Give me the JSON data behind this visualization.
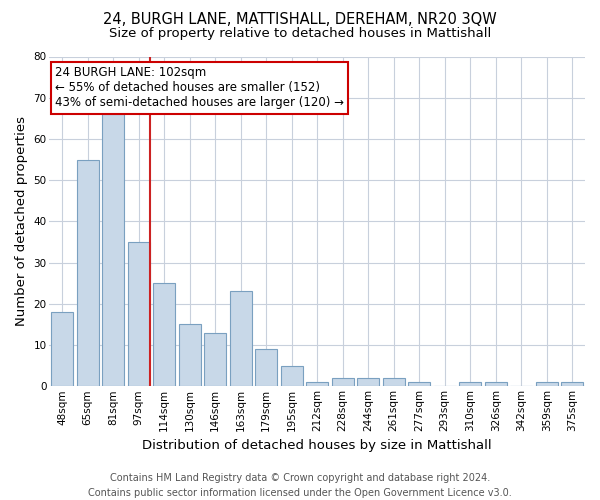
{
  "title": "24, BURGH LANE, MATTISHALL, DEREHAM, NR20 3QW",
  "subtitle": "Size of property relative to detached houses in Mattishall",
  "xlabel": "Distribution of detached houses by size in Mattishall",
  "ylabel": "Number of detached properties",
  "categories": [
    "48sqm",
    "65sqm",
    "81sqm",
    "97sqm",
    "114sqm",
    "130sqm",
    "146sqm",
    "163sqm",
    "179sqm",
    "195sqm",
    "212sqm",
    "228sqm",
    "244sqm",
    "261sqm",
    "277sqm",
    "293sqm",
    "310sqm",
    "326sqm",
    "342sqm",
    "359sqm",
    "375sqm"
  ],
  "values": [
    18,
    55,
    66,
    35,
    25,
    15,
    13,
    23,
    9,
    5,
    1,
    2,
    2,
    2,
    1,
    0,
    1,
    1,
    0,
    1,
    1
  ],
  "bar_color": "#c8d8e8",
  "bar_edge_color": "#7aa0c0",
  "red_line_index": 3,
  "ylim": [
    0,
    80
  ],
  "annotation_line1": "24 BURGH LANE: 102sqm",
  "annotation_line2": "← 55% of detached houses are smaller (152)",
  "annotation_line3": "43% of semi-detached houses are larger (120) →",
  "annotation_box_color": "#ffffff",
  "annotation_box_edge_color": "#cc0000",
  "red_line_color": "#cc2222",
  "footer_line1": "Contains HM Land Registry data © Crown copyright and database right 2024.",
  "footer_line2": "Contains public sector information licensed under the Open Government Licence v3.0.",
  "title_fontsize": 10.5,
  "subtitle_fontsize": 9.5,
  "axis_label_fontsize": 9.5,
  "tick_fontsize": 7.5,
  "annotation_fontsize": 8.5,
  "footer_fontsize": 7,
  "background_color": "#ffffff",
  "grid_color": "#c8d0dc"
}
